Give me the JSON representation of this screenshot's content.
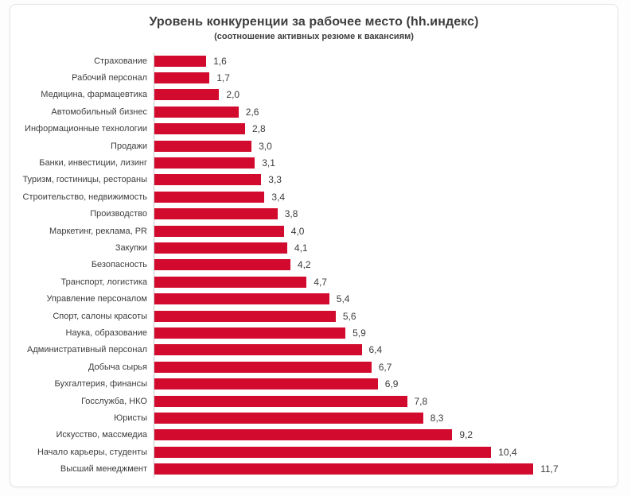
{
  "chart_data": {
    "type": "bar",
    "orientation": "horizontal",
    "title": "Уровень конкуренции за рабочее место (hh.индекс)",
    "subtitle": "(соотношение активных резюме к вакансиям)",
    "categories": [
      "Страхование",
      "Рабочий персонал",
      "Медицина, фармацевтика",
      "Автомобильный бизнес",
      "Информационные технологии",
      "Продажи",
      "Банки, инвестиции, лизинг",
      "Туризм, гостиницы, рестораны",
      "Строительство, недвижимость",
      "Производство",
      "Маркетинг, реклама, PR",
      "Закупки",
      "Безопасность",
      "Транспорт, логистика",
      "Управление персоналом",
      "Спорт, салоны красоты",
      "Наука, образование",
      "Административный персонал",
      "Добыча сырья",
      "Бухгалтерия, финансы",
      "Госслужба, НКО",
      "Юристы",
      "Искусство, массмедиа",
      "Начало карьеры, студенты",
      "Высший менеджмент"
    ],
    "values": [
      1.6,
      1.7,
      2.0,
      2.6,
      2.8,
      3.0,
      3.1,
      3.3,
      3.4,
      3.8,
      4.0,
      4.1,
      4.2,
      4.7,
      5.4,
      5.6,
      5.9,
      6.4,
      6.7,
      6.9,
      7.8,
      8.3,
      9.2,
      10.4,
      11.7
    ],
    "value_format": "comma-decimal, one fractional digit",
    "data_labels": true,
    "xlim": [
      0,
      14.2
    ],
    "grid": false,
    "legend": "none",
    "bar_color": "#d20a2e",
    "text_color": "#3c3c3c",
    "axis_line_color": "#c9c9c9"
  }
}
